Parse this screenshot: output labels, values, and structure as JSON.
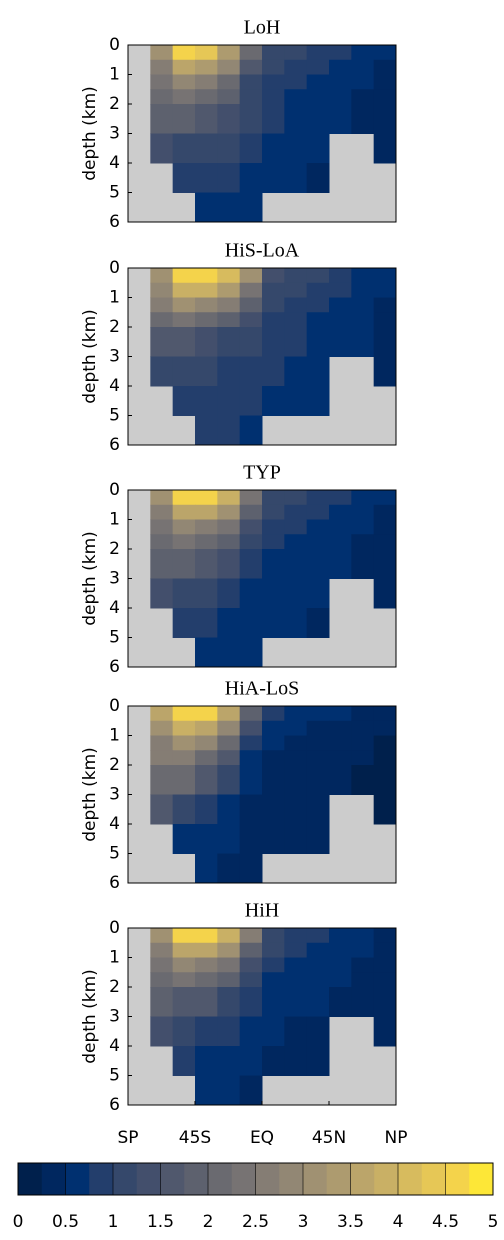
{
  "chart_data": [
    {
      "type": "heatmap",
      "title": "LoH",
      "ylabel": "depth (km)",
      "x": [
        -90,
        -75,
        -60,
        -45,
        -30,
        -15,
        0,
        15,
        30,
        45,
        60,
        75,
        90
      ],
      "y": [
        0,
        0.5,
        1,
        1.5,
        2,
        3,
        4,
        5,
        6
      ],
      "ylim": [
        0,
        6
      ],
      "y_inverted": true,
      "yticks": [
        0,
        1,
        2,
        3,
        4,
        5,
        6
      ],
      "xlim": [
        -90,
        90
      ],
      "values": [
        [
          null,
          3.0,
          4.6,
          4.4,
          3.4,
          2.0,
          1.2,
          1.0,
          0.9,
          0.8,
          0.6,
          0.5
        ],
        [
          null,
          2.5,
          3.5,
          3.4,
          2.8,
          1.5,
          1.0,
          0.9,
          0.8,
          0.7,
          0.5,
          0.4
        ],
        [
          null,
          2.3,
          2.8,
          2.7,
          2.2,
          1.2,
          0.9,
          0.8,
          0.7,
          0.6,
          0.5,
          0.4
        ],
        [
          null,
          2.1,
          2.3,
          2.2,
          1.8,
          1.1,
          0.8,
          0.7,
          0.6,
          0.5,
          0.4,
          0.3
        ],
        [
          null,
          1.9,
          1.9,
          1.7,
          1.4,
          1.0,
          0.8,
          0.7,
          0.6,
          0.5,
          0.4,
          0.3
        ],
        [
          null,
          1.3,
          1.2,
          1.1,
          1.0,
          0.8,
          0.7,
          0.6,
          0.5,
          null,
          null,
          0.3
        ],
        [
          null,
          null,
          0.9,
          0.9,
          0.8,
          0.7,
          0.6,
          0.5,
          0.4,
          null,
          null,
          null
        ],
        [
          null,
          null,
          null,
          0.7,
          0.7,
          0.6,
          null,
          null,
          null,
          null,
          null,
          null
        ]
      ]
    },
    {
      "type": "heatmap",
      "title": "HiS-LoA",
      "ylabel": "depth (km)",
      "x": [
        -90,
        -75,
        -60,
        -45,
        -30,
        -15,
        0,
        15,
        30,
        45,
        60,
        75,
        90
      ],
      "y": [
        0,
        0.5,
        1,
        1.5,
        2,
        3,
        4,
        5,
        6
      ],
      "ylim": [
        0,
        6
      ],
      "y_inverted": true,
      "yticks": [
        0,
        1,
        2,
        3,
        4,
        5,
        6
      ],
      "xlim": [
        -90,
        90
      ],
      "values": [
        [
          null,
          3.2,
          4.5,
          4.6,
          4.2,
          3.2,
          1.4,
          1.1,
          1.0,
          0.9,
          0.7,
          0.5
        ],
        [
          null,
          2.8,
          3.8,
          3.8,
          3.4,
          2.4,
          1.2,
          1.0,
          0.9,
          0.8,
          0.6,
          0.5
        ],
        [
          null,
          2.5,
          3.0,
          2.9,
          2.6,
          1.8,
          1.0,
          0.9,
          0.8,
          0.7,
          0.5,
          0.4
        ],
        [
          null,
          2.2,
          2.3,
          2.2,
          1.9,
          1.4,
          0.9,
          0.8,
          0.7,
          0.6,
          0.5,
          0.4
        ],
        [
          null,
          1.6,
          1.5,
          1.4,
          1.2,
          1.0,
          0.9,
          0.8,
          0.7,
          0.6,
          0.5,
          0.4
        ],
        [
          null,
          1.1,
          1.0,
          1.0,
          0.9,
          0.9,
          0.8,
          0.7,
          0.6,
          null,
          null,
          0.3
        ],
        [
          null,
          null,
          0.9,
          0.9,
          0.8,
          0.8,
          0.7,
          0.6,
          0.5,
          null,
          null,
          null
        ],
        [
          null,
          null,
          null,
          0.8,
          0.8,
          0.7,
          null,
          null,
          null,
          null,
          null,
          null
        ]
      ]
    },
    {
      "type": "heatmap",
      "title": "TYP",
      "ylabel": "depth (km)",
      "x": [
        -90,
        -75,
        -60,
        -45,
        -30,
        -15,
        0,
        15,
        30,
        45,
        60,
        75,
        90
      ],
      "y": [
        0,
        0.5,
        1,
        1.5,
        2,
        3,
        4,
        5,
        6
      ],
      "ylim": [
        0,
        6
      ],
      "y_inverted": true,
      "yticks": [
        0,
        1,
        2,
        3,
        4,
        5,
        6
      ],
      "xlim": [
        -90,
        90
      ],
      "values": [
        [
          null,
          3.2,
          4.6,
          4.6,
          3.8,
          2.4,
          1.2,
          1.0,
          0.9,
          0.8,
          0.6,
          0.5
        ],
        [
          null,
          2.7,
          3.6,
          3.5,
          3.0,
          1.8,
          1.0,
          0.9,
          0.8,
          0.7,
          0.5,
          0.4
        ],
        [
          null,
          2.4,
          2.8,
          2.7,
          2.3,
          1.3,
          0.9,
          0.8,
          0.7,
          0.6,
          0.5,
          0.4
        ],
        [
          null,
          2.2,
          2.3,
          2.2,
          1.9,
          1.1,
          0.8,
          0.7,
          0.6,
          0.5,
          0.4,
          0.3
        ],
        [
          null,
          1.9,
          1.8,
          1.6,
          1.3,
          0.9,
          0.7,
          0.6,
          0.6,
          0.5,
          0.4,
          0.3
        ],
        [
          null,
          1.4,
          1.1,
          1.0,
          0.9,
          0.7,
          0.6,
          0.5,
          0.5,
          null,
          null,
          0.3
        ],
        [
          null,
          null,
          0.9,
          0.8,
          0.7,
          0.6,
          0.5,
          0.5,
          0.4,
          null,
          null,
          null
        ],
        [
          null,
          null,
          null,
          0.7,
          0.6,
          0.5,
          null,
          null,
          null,
          null,
          null,
          null
        ]
      ]
    },
    {
      "type": "heatmap",
      "title": "HiA-LoS",
      "ylabel": "depth (km)",
      "x": [
        -90,
        -75,
        -60,
        -45,
        -30,
        -15,
        0,
        15,
        30,
        45,
        60,
        75,
        90
      ],
      "y": [
        0,
        0.5,
        1,
        1.5,
        2,
        3,
        4,
        5,
        6
      ],
      "ylim": [
        0,
        6
      ],
      "y_inverted": true,
      "yticks": [
        0,
        1,
        2,
        3,
        4,
        5,
        6
      ],
      "xlim": [
        -90,
        90
      ],
      "values": [
        [
          null,
          3.6,
          4.7,
          4.6,
          3.6,
          1.8,
          0.8,
          0.6,
          0.5,
          0.5,
          0.4,
          0.3
        ],
        [
          null,
          3.0,
          3.8,
          3.6,
          2.8,
          1.3,
          0.6,
          0.5,
          0.4,
          0.4,
          0.3,
          0.3
        ],
        [
          null,
          2.7,
          3.0,
          2.8,
          2.0,
          0.9,
          0.5,
          0.4,
          0.4,
          0.3,
          0.3,
          0.2
        ],
        [
          null,
          2.5,
          2.6,
          2.2,
          1.5,
          0.7,
          0.4,
          0.4,
          0.3,
          0.3,
          0.3,
          0.2
        ],
        [
          null,
          2.2,
          2.1,
          1.6,
          1.0,
          0.5,
          0.4,
          0.3,
          0.3,
          0.3,
          0.2,
          0.2
        ],
        [
          null,
          1.5,
          1.2,
          0.9,
          0.6,
          0.4,
          0.3,
          0.3,
          0.3,
          null,
          null,
          0.2
        ],
        [
          null,
          null,
          0.7,
          0.6,
          0.5,
          0.4,
          0.3,
          0.3,
          0.3,
          null,
          null,
          null
        ],
        [
          null,
          null,
          null,
          0.5,
          0.4,
          0.3,
          null,
          null,
          null,
          null,
          null,
          null
        ]
      ]
    },
    {
      "type": "heatmap",
      "title": "HiH",
      "ylabel": "depth (km)",
      "x": [
        -90,
        -75,
        -60,
        -45,
        -30,
        -15,
        0,
        15,
        30,
        45,
        60,
        75,
        90
      ],
      "y": [
        0,
        0.5,
        1,
        1.5,
        2,
        3,
        4,
        5,
        6
      ],
      "ylim": [
        0,
        6
      ],
      "y_inverted": true,
      "yticks": [
        0,
        1,
        2,
        3,
        4,
        5,
        6
      ],
      "xlim": [
        -90,
        90
      ],
      "xticks": [
        {
          "value": -90,
          "label": "SP"
        },
        {
          "value": -45,
          "label": "45S"
        },
        {
          "value": 0,
          "label": "EQ"
        },
        {
          "value": 45,
          "label": "45N"
        },
        {
          "value": 90,
          "label": "NP"
        }
      ],
      "values": [
        [
          null,
          3.2,
          4.7,
          4.6,
          3.8,
          2.6,
          1.2,
          0.9,
          0.8,
          0.7,
          0.5,
          0.4
        ],
        [
          null,
          2.7,
          3.6,
          3.5,
          3.0,
          1.9,
          1.0,
          0.8,
          0.7,
          0.6,
          0.5,
          0.4
        ],
        [
          null,
          2.4,
          2.8,
          2.7,
          2.3,
          1.4,
          0.8,
          0.7,
          0.6,
          0.5,
          0.4,
          0.3
        ],
        [
          null,
          2.2,
          2.3,
          2.1,
          1.8,
          1.1,
          0.7,
          0.6,
          0.5,
          0.5,
          0.4,
          0.3
        ],
        [
          null,
          1.8,
          1.7,
          1.5,
          1.2,
          0.8,
          0.6,
          0.5,
          0.5,
          0.4,
          0.4,
          0.3
        ],
        [
          null,
          1.3,
          1.0,
          0.9,
          0.8,
          0.6,
          0.5,
          0.4,
          0.4,
          null,
          null,
          0.3
        ],
        [
          null,
          null,
          0.8,
          0.7,
          0.6,
          0.5,
          0.4,
          0.4,
          0.4,
          null,
          null,
          null
        ],
        [
          null,
          null,
          null,
          0.6,
          0.5,
          0.4,
          null,
          null,
          null,
          null,
          null,
          null
        ]
      ]
    },
    {
      "type": "colorbar",
      "clim": [
        0,
        5
      ],
      "ticks": [
        0,
        0.5,
        1,
        1.5,
        2,
        2.5,
        3,
        3.5,
        4,
        4.5,
        5
      ],
      "colors": [
        "#00204c",
        "#00275f",
        "#003070",
        "#233e6c",
        "#35486b",
        "#434f6c",
        "#50586d",
        "#5d616e",
        "#6a6a70",
        "#777373",
        "#857d74",
        "#928774",
        "#a09172",
        "#ad9b6f",
        "#bba56a",
        "#c9b065",
        "#d7bb5e",
        "#e6c756",
        "#f4d34b",
        "#fde737"
      ]
    }
  ]
}
